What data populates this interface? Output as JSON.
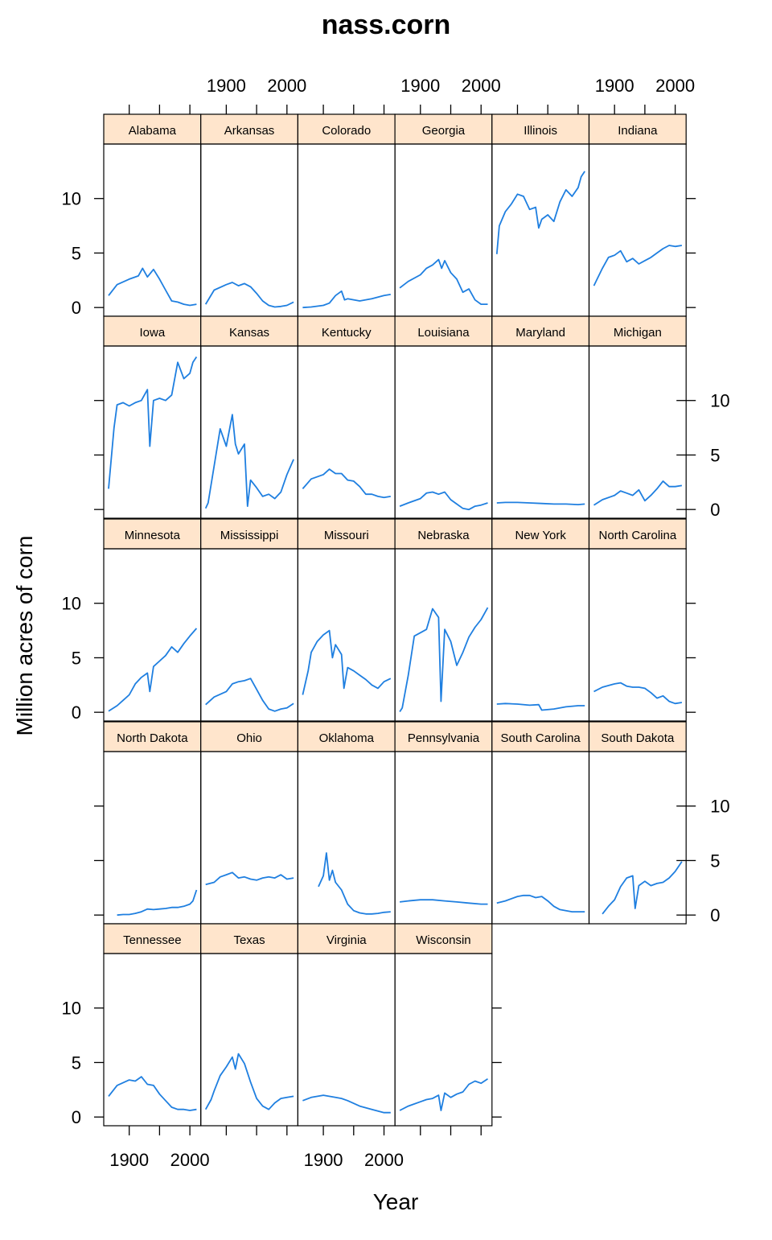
{
  "chart_data": {
    "type": "line",
    "title": "nass.corn",
    "xlabel": "Year",
    "ylabel": "Million acres of corn",
    "x_ticks": [
      1900,
      2000
    ],
    "y_ticks": [
      0,
      5,
      10
    ],
    "xlim": [
      1858,
      2018
    ],
    "ylim": [
      -0.8,
      15
    ],
    "line_color": "#1f7fe0",
    "strip_color": "#ffe5cc",
    "panels": [
      {
        "state": "Alabama",
        "x": [
          1866,
          1880,
          1900,
          1915,
          1922,
          1930,
          1940,
          1950,
          1960,
          1970,
          1980,
          1990,
          2000,
          2011
        ],
        "y": [
          1.1,
          2.1,
          2.6,
          2.9,
          3.6,
          2.8,
          3.5,
          2.6,
          1.6,
          0.6,
          0.5,
          0.3,
          0.2,
          0.3
        ]
      },
      {
        "state": "Arkansas",
        "x": [
          1866,
          1880,
          1900,
          1910,
          1920,
          1930,
          1940,
          1950,
          1960,
          1970,
          1980,
          1990,
          2000,
          2011
        ],
        "y": [
          0.3,
          1.6,
          2.1,
          2.3,
          2.0,
          2.2,
          1.9,
          1.3,
          0.6,
          0.2,
          0.05,
          0.1,
          0.2,
          0.5
        ]
      },
      {
        "state": "Colorado",
        "x": [
          1866,
          1880,
          1900,
          1910,
          1920,
          1930,
          1935,
          1940,
          1960,
          1980,
          2000,
          2011
        ],
        "y": [
          0.0,
          0.05,
          0.2,
          0.4,
          1.1,
          1.5,
          0.7,
          0.8,
          0.6,
          0.8,
          1.1,
          1.2
        ]
      },
      {
        "state": "Georgia",
        "x": [
          1866,
          1880,
          1900,
          1910,
          1920,
          1930,
          1935,
          1940,
          1950,
          1960,
          1970,
          1980,
          1990,
          2000,
          2011
        ],
        "y": [
          1.8,
          2.4,
          3.0,
          3.6,
          3.9,
          4.4,
          3.6,
          4.3,
          3.2,
          2.6,
          1.4,
          1.7,
          0.7,
          0.3,
          0.3
        ]
      },
      {
        "state": "Illinois",
        "x": [
          1866,
          1870,
          1880,
          1890,
          1900,
          1910,
          1920,
          1930,
          1935,
          1940,
          1950,
          1960,
          1970,
          1980,
          1990,
          2000,
          2005,
          2011
        ],
        "y": [
          4.9,
          7.5,
          8.8,
          9.5,
          10.4,
          10.2,
          9.0,
          9.2,
          7.3,
          8.1,
          8.5,
          7.9,
          9.7,
          10.8,
          10.2,
          11.0,
          12.0,
          12.5
        ]
      },
      {
        "state": "Indiana",
        "x": [
          1866,
          1880,
          1890,
          1900,
          1910,
          1920,
          1930,
          1940,
          1950,
          1960,
          1970,
          1980,
          1990,
          2000,
          2011
        ],
        "y": [
          2.0,
          3.6,
          4.6,
          4.8,
          5.2,
          4.2,
          4.5,
          4.0,
          4.3,
          4.6,
          5.0,
          5.4,
          5.7,
          5.6,
          5.7
        ]
      },
      {
        "state": "Iowa",
        "x": [
          1866,
          1875,
          1880,
          1890,
          1900,
          1910,
          1920,
          1930,
          1934,
          1940,
          1950,
          1960,
          1970,
          1980,
          1990,
          2000,
          2005,
          2011
        ],
        "y": [
          1.9,
          7.5,
          9.6,
          9.8,
          9.5,
          9.8,
          10.0,
          11.0,
          5.8,
          10.0,
          10.2,
          10.0,
          10.5,
          13.5,
          12.0,
          12.5,
          13.5,
          14.0
        ]
      },
      {
        "state": "Kansas",
        "x": [
          1866,
          1870,
          1880,
          1890,
          1900,
          1910,
          1915,
          1920,
          1930,
          1935,
          1940,
          1950,
          1960,
          1970,
          1980,
          1990,
          2000,
          2011
        ],
        "y": [
          0.1,
          0.6,
          4.0,
          7.4,
          5.8,
          8.7,
          6.0,
          5.1,
          6.0,
          0.3,
          2.7,
          2.0,
          1.2,
          1.4,
          1.0,
          1.6,
          3.2,
          4.6
        ]
      },
      {
        "state": "Kentucky",
        "x": [
          1866,
          1880,
          1900,
          1910,
          1920,
          1930,
          1940,
          1950,
          1960,
          1970,
          1980,
          1990,
          2000,
          2011
        ],
        "y": [
          1.9,
          2.8,
          3.2,
          3.7,
          3.3,
          3.3,
          2.7,
          2.6,
          2.1,
          1.4,
          1.4,
          1.2,
          1.1,
          1.2
        ]
      },
      {
        "state": "Louisiana",
        "x": [
          1866,
          1880,
          1900,
          1910,
          1920,
          1930,
          1940,
          1950,
          1960,
          1970,
          1980,
          1990,
          2000,
          2011
        ],
        "y": [
          0.3,
          0.6,
          1.0,
          1.5,
          1.6,
          1.4,
          1.6,
          0.9,
          0.5,
          0.1,
          0.0,
          0.3,
          0.4,
          0.6
        ]
      },
      {
        "state": "Maryland",
        "x": [
          1866,
          1880,
          1900,
          1920,
          1940,
          1960,
          1980,
          2000,
          2011
        ],
        "y": [
          0.6,
          0.65,
          0.65,
          0.6,
          0.55,
          0.5,
          0.5,
          0.45,
          0.5
        ]
      },
      {
        "state": "Michigan",
        "x": [
          1866,
          1880,
          1900,
          1910,
          1920,
          1930,
          1940,
          1950,
          1960,
          1970,
          1980,
          1990,
          2000,
          2011
        ],
        "y": [
          0.4,
          0.9,
          1.3,
          1.7,
          1.5,
          1.3,
          1.8,
          0.8,
          1.3,
          1.9,
          2.6,
          2.1,
          2.1,
          2.2
        ]
      },
      {
        "state": "Minnesota",
        "x": [
          1866,
          1880,
          1890,
          1900,
          1910,
          1920,
          1930,
          1934,
          1940,
          1950,
          1960,
          1970,
          1980,
          1990,
          2000,
          2011
        ],
        "y": [
          0.1,
          0.6,
          1.1,
          1.6,
          2.6,
          3.2,
          3.6,
          1.9,
          4.2,
          4.7,
          5.2,
          6.0,
          5.5,
          6.3,
          7.0,
          7.7
        ]
      },
      {
        "state": "Mississippi",
        "x": [
          1866,
          1880,
          1900,
          1910,
          1920,
          1930,
          1940,
          1950,
          1960,
          1970,
          1980,
          1990,
          2000,
          2011
        ],
        "y": [
          0.7,
          1.4,
          1.9,
          2.6,
          2.8,
          2.9,
          3.1,
          2.1,
          1.1,
          0.3,
          0.1,
          0.3,
          0.4,
          0.8
        ]
      },
      {
        "state": "Missouri",
        "x": [
          1866,
          1875,
          1880,
          1890,
          1900,
          1910,
          1915,
          1920,
          1930,
          1934,
          1940,
          1950,
          1960,
          1970,
          1980,
          1990,
          2000,
          2011
        ],
        "y": [
          1.6,
          3.8,
          5.5,
          6.5,
          7.1,
          7.5,
          5.0,
          6.2,
          5.3,
          2.2,
          4.1,
          3.8,
          3.4,
          3.0,
          2.5,
          2.2,
          2.8,
          3.1
        ]
      },
      {
        "state": "Nebraska",
        "x": [
          1866,
          1870,
          1880,
          1890,
          1900,
          1910,
          1920,
          1930,
          1934,
          1940,
          1950,
          1960,
          1970,
          1980,
          1990,
          2000,
          2011
        ],
        "y": [
          0.05,
          0.4,
          3.4,
          7.0,
          7.3,
          7.6,
          9.5,
          8.7,
          1.0,
          7.6,
          6.5,
          4.3,
          5.5,
          6.9,
          7.8,
          8.5,
          9.6
        ]
      },
      {
        "state": "New York",
        "x": [
          1866,
          1880,
          1900,
          1920,
          1935,
          1940,
          1960,
          1980,
          2000,
          2011
        ],
        "y": [
          0.75,
          0.8,
          0.75,
          0.65,
          0.7,
          0.2,
          0.3,
          0.5,
          0.6,
          0.6
        ]
      },
      {
        "state": "North Carolina",
        "x": [
          1866,
          1880,
          1900,
          1910,
          1920,
          1930,
          1940,
          1950,
          1960,
          1970,
          1980,
          1990,
          2000,
          2011
        ],
        "y": [
          1.9,
          2.3,
          2.6,
          2.7,
          2.4,
          2.3,
          2.3,
          2.2,
          1.8,
          1.3,
          1.5,
          1.0,
          0.8,
          0.9
        ]
      },
      {
        "state": "North Dakota",
        "x": [
          1880,
          1890,
          1900,
          1910,
          1920,
          1930,
          1940,
          1950,
          1960,
          1970,
          1980,
          1990,
          2000,
          2005,
          2011
        ],
        "y": [
          0.0,
          0.05,
          0.05,
          0.15,
          0.3,
          0.55,
          0.5,
          0.55,
          0.6,
          0.7,
          0.7,
          0.8,
          1.0,
          1.3,
          2.3
        ]
      },
      {
        "state": "Ohio",
        "x": [
          1866,
          1880,
          1890,
          1900,
          1910,
          1920,
          1930,
          1940,
          1950,
          1960,
          1970,
          1980,
          1990,
          2000,
          2011
        ],
        "y": [
          2.8,
          3.0,
          3.5,
          3.7,
          3.9,
          3.4,
          3.5,
          3.3,
          3.2,
          3.4,
          3.5,
          3.4,
          3.7,
          3.3,
          3.4
        ]
      },
      {
        "state": "Oklahoma",
        "x": [
          1892,
          1900,
          1905,
          1910,
          1915,
          1920,
          1930,
          1940,
          1950,
          1960,
          1970,
          1980,
          1990,
          2000,
          2011
        ],
        "y": [
          2.6,
          3.6,
          5.7,
          3.2,
          4.1,
          3.0,
          2.3,
          1.0,
          0.4,
          0.2,
          0.1,
          0.1,
          0.15,
          0.25,
          0.3
        ]
      },
      {
        "state": "Pennsylvania",
        "x": [
          1866,
          1880,
          1900,
          1920,
          1940,
          1960,
          1980,
          2000,
          2011
        ],
        "y": [
          1.2,
          1.3,
          1.4,
          1.4,
          1.3,
          1.2,
          1.1,
          1.0,
          1.0
        ]
      },
      {
        "state": "South Carolina",
        "x": [
          1866,
          1880,
          1900,
          1910,
          1920,
          1930,
          1940,
          1950,
          1960,
          1970,
          1980,
          1990,
          2000,
          2011
        ],
        "y": [
          1.1,
          1.3,
          1.7,
          1.8,
          1.8,
          1.6,
          1.7,
          1.3,
          0.8,
          0.5,
          0.4,
          0.3,
          0.3,
          0.3
        ]
      },
      {
        "state": "South Dakota",
        "x": [
          1880,
          1890,
          1900,
          1910,
          1920,
          1930,
          1934,
          1940,
          1950,
          1960,
          1970,
          1980,
          1990,
          2000,
          2011
        ],
        "y": [
          0.1,
          0.8,
          1.4,
          2.6,
          3.4,
          3.6,
          0.6,
          2.7,
          3.1,
          2.7,
          2.9,
          3.0,
          3.4,
          4.0,
          4.9
        ]
      },
      {
        "state": "Tennessee",
        "x": [
          1866,
          1880,
          1900,
          1910,
          1920,
          1930,
          1940,
          1950,
          1960,
          1970,
          1980,
          1990,
          2000,
          2011
        ],
        "y": [
          1.9,
          2.9,
          3.4,
          3.3,
          3.7,
          3.0,
          2.9,
          2.1,
          1.5,
          0.9,
          0.7,
          0.7,
          0.6,
          0.7
        ]
      },
      {
        "state": "Texas",
        "x": [
          1866,
          1875,
          1880,
          1890,
          1900,
          1910,
          1915,
          1920,
          1930,
          1940,
          1950,
          1960,
          1970,
          1980,
          1990,
          2000,
          2011
        ],
        "y": [
          0.7,
          1.6,
          2.4,
          3.8,
          4.6,
          5.5,
          4.4,
          5.8,
          4.9,
          3.2,
          1.7,
          1.0,
          0.7,
          1.3,
          1.7,
          1.8,
          1.9
        ]
      },
      {
        "state": "Virginia",
        "x": [
          1866,
          1880,
          1900,
          1920,
          1930,
          1940,
          1960,
          1980,
          2000,
          2011
        ],
        "y": [
          1.5,
          1.8,
          2.0,
          1.8,
          1.7,
          1.5,
          1.0,
          0.7,
          0.4,
          0.4
        ]
      },
      {
        "state": "Wisconsin",
        "x": [
          1866,
          1880,
          1900,
          1910,
          1920,
          1930,
          1934,
          1940,
          1950,
          1960,
          1970,
          1980,
          1990,
          2000,
          2011
        ],
        "y": [
          0.6,
          1.0,
          1.4,
          1.6,
          1.7,
          2.0,
          0.6,
          2.2,
          1.8,
          2.1,
          2.3,
          3.0,
          3.3,
          3.1,
          3.5
        ]
      }
    ]
  }
}
